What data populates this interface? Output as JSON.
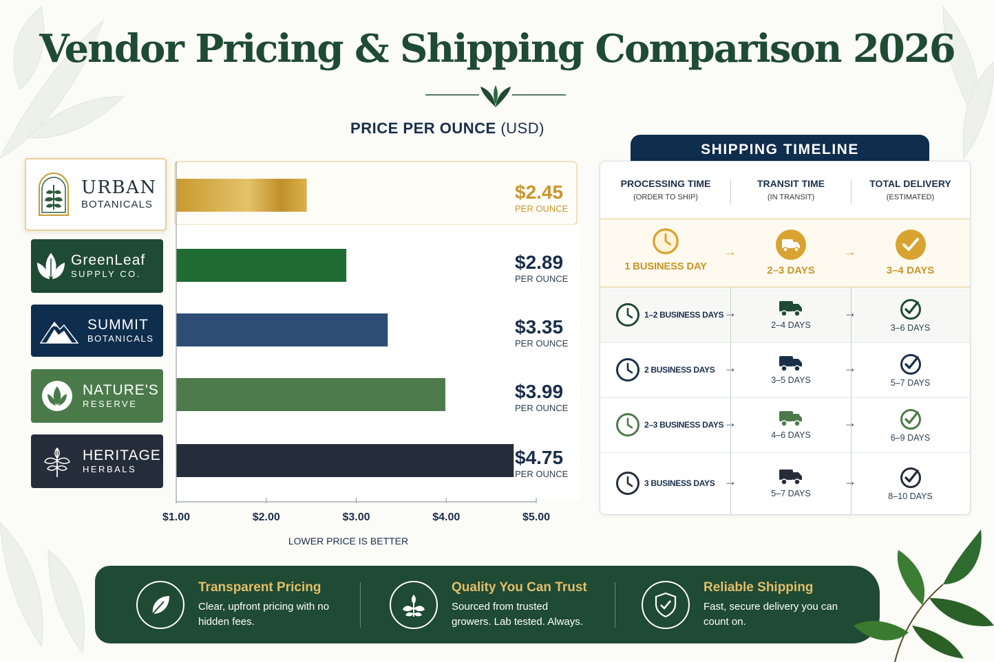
{
  "title": "Vendor Pricing & Shipping Comparison 2026",
  "chart_title": {
    "bold": "PRICE PER OUNCE",
    "unit": "(USD)"
  },
  "chart_data": {
    "type": "bar",
    "orientation": "horizontal",
    "title": "PRICE PER OUNCE (USD)",
    "categories": [
      "URBAN BOTANICALS",
      "GreenLeaf SUPPLY CO.",
      "SUMMIT BOTANICALS",
      "NATURE'S RESERVE",
      "HERITAGE HERBALS"
    ],
    "values": [
      2.45,
      2.89,
      3.35,
      3.99,
      4.75
    ],
    "value_labels": [
      "$2.45",
      "$2.89",
      "$3.35",
      "$3.99",
      "$4.75"
    ],
    "value_sublabel": "PER OUNCE",
    "x_ticks": [
      "$1.00",
      "$2.00",
      "$3.00",
      "$4.00",
      "$5.00"
    ],
    "xlim": [
      1,
      5
    ],
    "xlabel": "LOWER PRICE IS BETTER",
    "colors": [
      "#c89a2e",
      "#1f6b34",
      "#2d4d74",
      "#4d7a4b",
      "#252c3a"
    ]
  },
  "vendors": [
    {
      "line1": "URBAN",
      "line2": "BOTANICALS",
      "bg": "#ffffff"
    },
    {
      "line1": "GreenLeaf",
      "line2": "SUPPLY CO.",
      "bg": "#1f4a33"
    },
    {
      "line1": "SUMMIT",
      "line2": "BOTANICALS",
      "bg": "#0f2d4d"
    },
    {
      "line1": "NATURE'S",
      "line2": "RESERVE",
      "bg": "#4a7a4a"
    },
    {
      "line1": "HERITAGE",
      "line2": "HERBALS",
      "bg": "#262d3a"
    }
  ],
  "shipping": {
    "header": "SHIPPING TIMELINE",
    "columns": [
      {
        "title": "PROCESSING TIME",
        "sub": "(ORDER TO SHIP)"
      },
      {
        "title": "TRANSIT TIME",
        "sub": "(IN TRANSIT)"
      },
      {
        "title": "TOTAL DELIVERY",
        "sub": "(ESTIMATED)"
      }
    ],
    "rows": [
      {
        "processing": "1 BUSINESS DAY",
        "transit": "2–3 DAYS",
        "total": "3–4 DAYS"
      },
      {
        "processing": "1–2 BUSINESS DAYS",
        "transit": "2–4 DAYS",
        "total": "3–6 DAYS"
      },
      {
        "processing": "2 BUSINESS DAYS",
        "transit": "3–5 DAYS",
        "total": "5–7 DAYS"
      },
      {
        "processing": "2–3 BUSINESS DAYS",
        "transit": "4–6 DAYS",
        "total": "6–9 DAYS"
      },
      {
        "processing": "3 BUSINESS DAYS",
        "transit": "5–7 DAYS",
        "total": "8–10 DAYS"
      }
    ],
    "icon_colors": [
      "#d9a331",
      "#1f4a33",
      "#1a2e4a",
      "#4d7a4b",
      "#252c3a"
    ]
  },
  "features": [
    {
      "title": "Transparent Pricing",
      "desc": "Clear, upfront pricing with no hidden fees.",
      "icon": "leaf-icon"
    },
    {
      "title": "Quality You Can Trust",
      "desc": "Sourced from trusted growers. Lab tested. Always.",
      "icon": "plant-icon"
    },
    {
      "title": "Reliable Shipping",
      "desc": "Fast, secure delivery you can count on.",
      "icon": "shield-check-icon"
    }
  ]
}
